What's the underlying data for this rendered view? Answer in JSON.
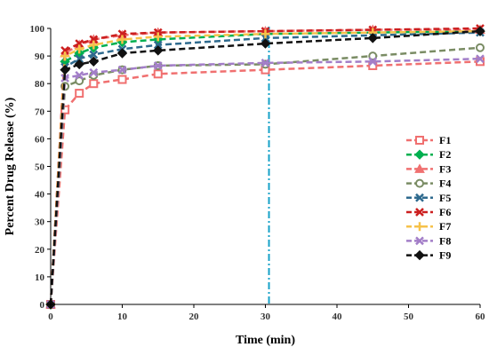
{
  "chart_data": {
    "type": "line",
    "xlabel": "Time (min)",
    "ylabel": "Percent Drug Release (%)",
    "xlim": [
      0,
      60
    ],
    "ylim": [
      0,
      100
    ],
    "x_ticks": [
      0,
      10,
      20,
      30,
      40,
      50,
      60
    ],
    "y_ticks": [
      0,
      10,
      20,
      30,
      40,
      50,
      60,
      70,
      80,
      90,
      100
    ],
    "grid": false,
    "legend_position": "right",
    "reference_line": {
      "x": 30.5,
      "color": "#17a2c8",
      "style": "dash-dot"
    },
    "x": [
      0,
      2,
      4,
      6,
      10,
      15,
      30,
      45,
      60
    ],
    "series": [
      {
        "name": "F1",
        "color": "#f07070",
        "marker": "square-open",
        "values": [
          0,
          70.5,
          76.5,
          80,
          81.5,
          83.5,
          85,
          86.5,
          88
        ]
      },
      {
        "name": "F2",
        "color": "#00b050",
        "marker": "diamond",
        "values": [
          0,
          88,
          91,
          93,
          95,
          96,
          98,
          98.5,
          99
        ]
      },
      {
        "name": "F3",
        "color": "#f07070",
        "marker": "triangle",
        "values": [
          0,
          91,
          94,
          96,
          97.5,
          98.5,
          99,
          99.5,
          99.5
        ]
      },
      {
        "name": "F4",
        "color": "#7a8c64",
        "marker": "circle-open",
        "values": [
          0,
          79,
          81,
          83,
          85,
          86.5,
          87,
          90,
          93
        ]
      },
      {
        "name": "F5",
        "color": "#2e6a8e",
        "marker": "x",
        "values": [
          0,
          86,
          89,
          90.5,
          92.5,
          94,
          96.5,
          97.5,
          98.5
        ]
      },
      {
        "name": "F6",
        "color": "#cc1f1f",
        "marker": "x",
        "values": [
          0,
          92,
          94.5,
          96,
          98,
          98.5,
          99,
          99.5,
          100
        ]
      },
      {
        "name": "F7",
        "color": "#f6c24a",
        "marker": "plus",
        "values": [
          0,
          90,
          92.5,
          94,
          96,
          97,
          98,
          98.5,
          99
        ]
      },
      {
        "name": "F8",
        "color": "#a37ec8",
        "marker": "x",
        "values": [
          0,
          82,
          83,
          84,
          85,
          86.5,
          87.5,
          88,
          89
        ]
      },
      {
        "name": "F9",
        "color": "#111111",
        "marker": "diamond",
        "values": [
          0,
          85,
          87,
          88,
          91,
          92,
          94.5,
          96.5,
          99
        ]
      }
    ]
  }
}
